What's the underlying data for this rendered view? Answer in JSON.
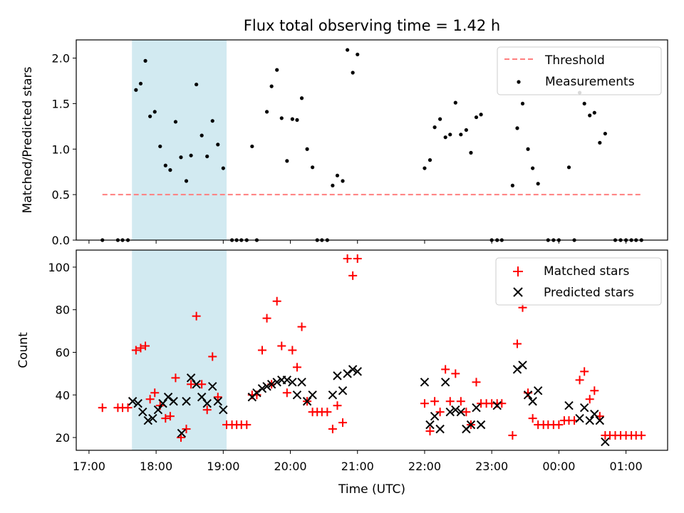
{
  "chart_data": {
    "type": "scatter",
    "title": "Flux total observing time = 1.42 h",
    "xlabel": "Time (UTC)",
    "x_unit": "hours since 17:00 UTC",
    "x_ticks": [
      {
        "value": 0,
        "label": "17:00"
      },
      {
        "value": 1,
        "label": "18:00"
      },
      {
        "value": 2,
        "label": "19:00"
      },
      {
        "value": 3,
        "label": "20:00"
      },
      {
        "value": 4,
        "label": "21:00"
      },
      {
        "value": 5,
        "label": "22:00"
      },
      {
        "value": 6,
        "label": "23:00"
      },
      {
        "value": 7,
        "label": "00:00"
      },
      {
        "value": 8,
        "label": "01:00"
      }
    ],
    "xlim": [
      -0.19,
      8.62
    ],
    "shaded_region": {
      "x_start": 0.64,
      "x_end": 2.05,
      "color": "#add8e6"
    },
    "panels": [
      {
        "ylabel": "Matched/Predicted stars",
        "ylim": [
          0,
          2.2
        ],
        "yticks": [
          0,
          0.5,
          1.0,
          1.5,
          2.0
        ],
        "ytick_labels": [
          "0.0",
          "0.5",
          "1.0",
          "1.5",
          "2.0"
        ],
        "legend": [
          "Threshold",
          "Measurements"
        ],
        "legend_position": "upper right",
        "threshold": {
          "name": "Threshold",
          "value": 0.5,
          "x_start": 0.2,
          "x_end": 8.25,
          "color": "#ff7f7f"
        },
        "measurements": {
          "name": "Measurements",
          "color": "#000000",
          "points": [
            [
              0.2,
              0.0
            ],
            [
              0.43,
              0.0
            ],
            [
              0.5,
              0.0
            ],
            [
              0.58,
              0.0
            ],
            [
              0.7,
              1.65
            ],
            [
              0.77,
              1.72
            ],
            [
              0.84,
              1.97
            ],
            [
              0.91,
              1.36
            ],
            [
              0.98,
              1.41
            ],
            [
              1.06,
              1.03
            ],
            [
              1.14,
              0.82
            ],
            [
              1.21,
              0.77
            ],
            [
              1.29,
              1.3
            ],
            [
              1.37,
              0.91
            ],
            [
              1.45,
              0.65
            ],
            [
              1.52,
              0.93
            ],
            [
              1.6,
              1.71
            ],
            [
              1.68,
              1.15
            ],
            [
              1.76,
              0.92
            ],
            [
              1.84,
              1.31
            ],
            [
              1.92,
              1.05
            ],
            [
              2.0,
              0.79
            ],
            [
              2.13,
              0.0
            ],
            [
              2.2,
              0.0
            ],
            [
              2.27,
              0.0
            ],
            [
              2.35,
              0.0
            ],
            [
              2.43,
              1.03
            ],
            [
              2.5,
              0.0
            ],
            [
              2.65,
              1.41
            ],
            [
              2.72,
              1.69
            ],
            [
              2.8,
              1.87
            ],
            [
              2.87,
              1.34
            ],
            [
              2.95,
              0.87
            ],
            [
              3.03,
              1.33
            ],
            [
              3.1,
              1.32
            ],
            [
              3.17,
              1.56
            ],
            [
              3.25,
              1.0
            ],
            [
              3.33,
              0.8
            ],
            [
              3.4,
              0.0
            ],
            [
              3.47,
              0.0
            ],
            [
              3.55,
              0.0
            ],
            [
              3.63,
              0.6
            ],
            [
              3.7,
              0.71
            ],
            [
              3.78,
              0.65
            ],
            [
              3.85,
              2.09
            ],
            [
              3.93,
              1.84
            ],
            [
              4.0,
              2.04
            ],
            [
              5.0,
              0.79
            ],
            [
              5.08,
              0.88
            ],
            [
              5.15,
              1.24
            ],
            [
              5.23,
              1.33
            ],
            [
              5.31,
              1.13
            ],
            [
              5.38,
              1.16
            ],
            [
              5.46,
              1.51
            ],
            [
              5.54,
              1.16
            ],
            [
              5.62,
              1.21
            ],
            [
              5.69,
              0.96
            ],
            [
              5.77,
              1.35
            ],
            [
              5.84,
              1.38
            ],
            [
              6.0,
              0.0
            ],
            [
              6.08,
              0.0
            ],
            [
              6.15,
              0.0
            ],
            [
              6.31,
              0.6
            ],
            [
              6.38,
              1.23
            ],
            [
              6.46,
              1.5
            ],
            [
              6.54,
              1.0
            ],
            [
              6.61,
              0.79
            ],
            [
              6.69,
              0.62
            ],
            [
              6.84,
              0.0
            ],
            [
              6.92,
              0.0
            ],
            [
              7.0,
              0.0
            ],
            [
              7.15,
              0.8
            ],
            [
              7.23,
              0.0
            ],
            [
              7.31,
              1.62
            ],
            [
              7.38,
              1.5
            ],
            [
              7.46,
              1.37
            ],
            [
              7.53,
              1.4
            ],
            [
              7.61,
              1.07
            ],
            [
              7.69,
              1.17
            ],
            [
              7.84,
              0.0
            ],
            [
              7.92,
              0.0
            ],
            [
              8.0,
              0.0
            ],
            [
              8.08,
              0.0
            ],
            [
              8.15,
              0.0
            ],
            [
              8.23,
              0.0
            ]
          ]
        }
      },
      {
        "ylabel": "Count",
        "ylim": [
          14,
          108
        ],
        "yticks": [
          20,
          40,
          60,
          80,
          100
        ],
        "ytick_labels": [
          "20",
          "40",
          "60",
          "80",
          "100"
        ],
        "legend": [
          "Matched stars",
          "Predicted stars"
        ],
        "legend_position": "upper right",
        "series": [
          {
            "name": "Matched stars",
            "marker": "+",
            "color": "#ff0000",
            "points": [
              [
                0.2,
                34
              ],
              [
                0.43,
                34
              ],
              [
                0.5,
                34
              ],
              [
                0.58,
                34
              ],
              [
                0.7,
                61
              ],
              [
                0.77,
                62
              ],
              [
                0.84,
                63
              ],
              [
                0.91,
                38
              ],
              [
                0.98,
                41
              ],
              [
                1.06,
                35
              ],
              [
                1.14,
                29
              ],
              [
                1.21,
                30
              ],
              [
                1.29,
                48
              ],
              [
                1.37,
                20
              ],
              [
                1.45,
                24
              ],
              [
                1.52,
                45
              ],
              [
                1.6,
                77
              ],
              [
                1.68,
                45
              ],
              [
                1.76,
                33
              ],
              [
                1.84,
                58
              ],
              [
                1.92,
                39
              ],
              [
                2.05,
                26
              ],
              [
                2.13,
                26
              ],
              [
                2.2,
                26
              ],
              [
                2.27,
                26
              ],
              [
                2.35,
                26
              ],
              [
                2.43,
                40
              ],
              [
                2.5,
                40
              ],
              [
                2.58,
                61
              ],
              [
                2.65,
                76
              ],
              [
                2.72,
                45
              ],
              [
                2.8,
                84
              ],
              [
                2.87,
                63
              ],
              [
                2.95,
                41
              ],
              [
                3.03,
                61
              ],
              [
                3.1,
                53
              ],
              [
                3.17,
                72
              ],
              [
                3.25,
                37
              ],
              [
                3.33,
                32
              ],
              [
                3.4,
                32
              ],
              [
                3.47,
                32
              ],
              [
                3.55,
                32
              ],
              [
                3.63,
                24
              ],
              [
                3.7,
                35
              ],
              [
                3.78,
                27
              ],
              [
                3.85,
                104
              ],
              [
                3.93,
                96
              ],
              [
                4.0,
                104
              ],
              [
                5.0,
                36
              ],
              [
                5.08,
                23
              ],
              [
                5.15,
                37
              ],
              [
                5.23,
                32
              ],
              [
                5.31,
                52
              ],
              [
                5.38,
                37
              ],
              [
                5.46,
                50
              ],
              [
                5.54,
                37
              ],
              [
                5.62,
                32
              ],
              [
                5.69,
                26
              ],
              [
                5.77,
                46
              ],
              [
                5.84,
                36
              ],
              [
                5.92,
                36
              ],
              [
                6.0,
                36
              ],
              [
                6.08,
                36
              ],
              [
                6.15,
                36
              ],
              [
                6.31,
                21
              ],
              [
                6.38,
                64
              ],
              [
                6.46,
                81
              ],
              [
                6.54,
                41
              ],
              [
                6.61,
                29
              ],
              [
                6.69,
                26
              ],
              [
                6.77,
                26
              ],
              [
                6.84,
                26
              ],
              [
                6.92,
                26
              ],
              [
                7.0,
                26
              ],
              [
                7.08,
                28
              ],
              [
                7.15,
                28
              ],
              [
                7.23,
                28
              ],
              [
                7.31,
                47
              ],
              [
                7.38,
                51
              ],
              [
                7.46,
                38
              ],
              [
                7.53,
                42
              ],
              [
                7.61,
                30
              ],
              [
                7.69,
                21
              ],
              [
                7.76,
                21
              ],
              [
                7.84,
                21
              ],
              [
                7.92,
                21
              ],
              [
                8.0,
                21
              ],
              [
                8.08,
                21
              ],
              [
                8.15,
                21
              ],
              [
                8.23,
                21
              ]
            ]
          },
          {
            "name": "Predicted stars",
            "marker": "x",
            "color": "#000000",
            "points": [
              [
                0.65,
                37
              ],
              [
                0.73,
                36
              ],
              [
                0.8,
                32
              ],
              [
                0.88,
                28
              ],
              [
                0.95,
                29
              ],
              [
                1.03,
                33
              ],
              [
                1.1,
                36
              ],
              [
                1.18,
                39
              ],
              [
                1.26,
                37
              ],
              [
                1.38,
                22
              ],
              [
                1.45,
                37
              ],
              [
                1.52,
                48
              ],
              [
                1.6,
                45
              ],
              [
                1.68,
                39
              ],
              [
                1.76,
                36
              ],
              [
                1.84,
                44
              ],
              [
                1.92,
                37
              ],
              [
                2.0,
                33
              ],
              [
                2.43,
                39
              ],
              [
                2.5,
                41
              ],
              [
                2.58,
                43
              ],
              [
                2.65,
                44
              ],
              [
                2.72,
                45
              ],
              [
                2.8,
                46
              ],
              [
                2.87,
                47
              ],
              [
                2.95,
                47
              ],
              [
                3.03,
                46
              ],
              [
                3.1,
                40
              ],
              [
                3.17,
                46
              ],
              [
                3.25,
                37
              ],
              [
                3.33,
                40
              ],
              [
                3.63,
                40
              ],
              [
                3.7,
                49
              ],
              [
                3.78,
                42
              ],
              [
                3.85,
                50
              ],
              [
                3.93,
                52
              ],
              [
                4.0,
                51
              ],
              [
                5.0,
                46
              ],
              [
                5.08,
                26
              ],
              [
                5.15,
                30
              ],
              [
                5.23,
                24
              ],
              [
                5.31,
                46
              ],
              [
                5.38,
                32
              ],
              [
                5.46,
                33
              ],
              [
                5.54,
                32
              ],
              [
                5.62,
                24
              ],
              [
                5.69,
                26
              ],
              [
                5.77,
                34
              ],
              [
                5.84,
                26
              ],
              [
                6.08,
                35
              ],
              [
                6.38,
                52
              ],
              [
                6.46,
                54
              ],
              [
                6.54,
                40
              ],
              [
                6.61,
                37
              ],
              [
                6.69,
                42
              ],
              [
                7.15,
                35
              ],
              [
                7.31,
                29
              ],
              [
                7.38,
                34
              ],
              [
                7.46,
                28
              ],
              [
                7.53,
                31
              ],
              [
                7.61,
                28
              ],
              [
                7.69,
                18
              ]
            ]
          }
        ]
      }
    ]
  }
}
